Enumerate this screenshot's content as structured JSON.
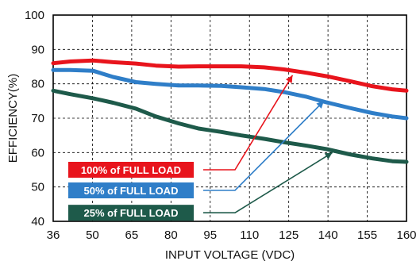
{
  "chart_data": {
    "type": "line",
    "title": "",
    "xlabel": "INPUT VOLTAGE (VDC)",
    "ylabel": "EFFICIENCY(%)",
    "xlim": [
      36,
      160
    ],
    "ylim": [
      40,
      100
    ],
    "x_ticks": [
      "36",
      "50",
      "65",
      "80",
      "95",
      "110",
      "125",
      "140",
      "155",
      "160"
    ],
    "y_ticks": [
      "100",
      "90",
      "80",
      "70",
      "60",
      "50",
      "40"
    ],
    "grid": true,
    "series": [
      {
        "name": "100% of FULL LOAD",
        "color": "#e8141c",
        "x": [
          36,
          42,
          50,
          57,
          65,
          72,
          80,
          87,
          95,
          102,
          110,
          117,
          125,
          132,
          140,
          148,
          155,
          160
        ],
        "y": [
          86,
          86.5,
          86.8,
          86.3,
          85.9,
          85.3,
          85.0,
          85.1,
          85.1,
          85.1,
          84.8,
          84.2,
          83.2,
          82.2,
          80.8,
          79.3,
          78.4,
          78.0
        ]
      },
      {
        "name": "50% of FULL LOAD",
        "color": "#2f7ec8",
        "x": [
          36,
          42,
          50,
          57,
          65,
          72,
          80,
          87,
          95,
          102,
          110,
          117,
          125,
          132,
          140,
          148,
          155,
          160
        ],
        "y": [
          84,
          84,
          83.8,
          82,
          80.5,
          80,
          79.5,
          79.5,
          79.4,
          79,
          78.5,
          77.6,
          76.2,
          74.6,
          73,
          71.5,
          70.5,
          70
        ]
      },
      {
        "name": "25% of FULL LOAD",
        "color": "#1e5a4a",
        "x": [
          36,
          42,
          50,
          57,
          65,
          72,
          80,
          87,
          95,
          102,
          110,
          117,
          125,
          132,
          140,
          148,
          155,
          160
        ],
        "y": [
          78,
          77,
          75.8,
          74.5,
          72.8,
          70.5,
          68.5,
          67,
          66,
          65,
          64,
          63,
          62,
          61,
          59.5,
          58.3,
          57.5,
          57.3
        ]
      }
    ],
    "legend_labels": [
      {
        "text": "100% of FULL LOAD",
        "color": "#e8141c",
        "at": [
          74,
          55
        ],
        "to": [
          120,
          82.5
        ]
      },
      {
        "text": "50% of FULL LOAD",
        "color": "#2f7ec8",
        "at": [
          74,
          49
        ],
        "to": [
          131,
          75
        ]
      },
      {
        "text": "25% of FULL LOAD",
        "color": "#1e5a4a",
        "at": [
          74,
          42.5
        ],
        "to": [
          134,
          60
        ]
      }
    ]
  }
}
